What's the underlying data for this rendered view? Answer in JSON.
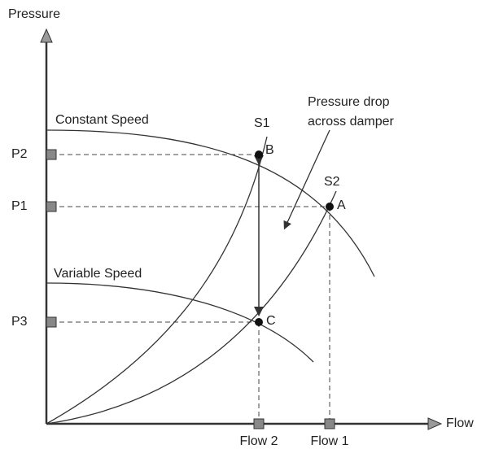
{
  "axes": {
    "y_label": "Pressure",
    "x_label": "Flow"
  },
  "pressure_levels": [
    "P2",
    "P1",
    "P3"
  ],
  "flow_levels": [
    "Flow 2",
    "Flow 1"
  ],
  "curves": {
    "constant": "Constant Speed",
    "variable": "Variable Speed",
    "s1": "S1",
    "s2": "S2"
  },
  "points": [
    "B",
    "A",
    "C"
  ],
  "annotation": [
    "Pressure drop",
    "across damper"
  ]
}
